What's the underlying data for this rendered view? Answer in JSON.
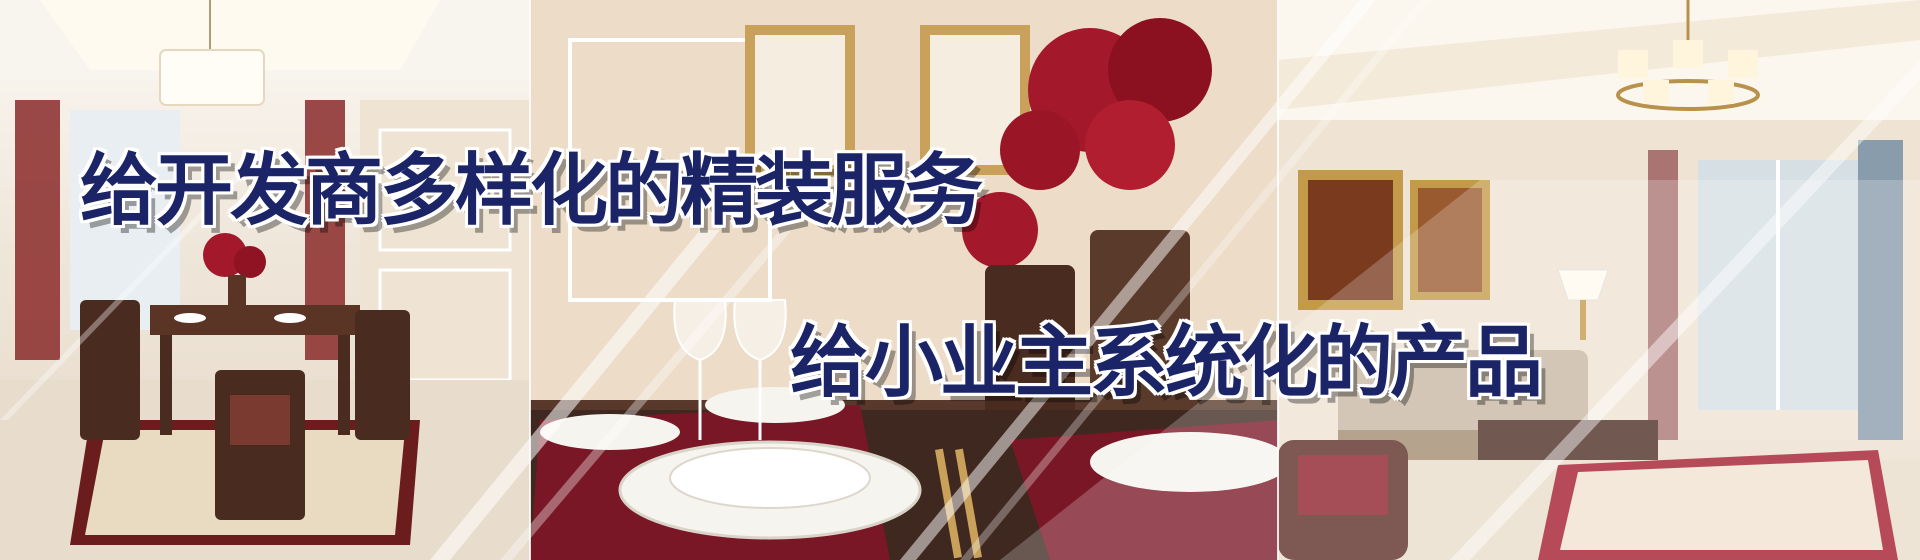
{
  "banner": {
    "headline_primary": "给开发商多样化的精装服务",
    "headline_secondary": "给小业主系统化的产品"
  },
  "colors": {
    "headline_text": "#1a2466",
    "headline_outline": "#ffffff",
    "accent_red": "#a3182a",
    "wood": "#4a2d22",
    "wall_cream": "#efe4d6"
  },
  "photos": [
    {
      "icon": "dining-room-photo"
    },
    {
      "icon": "table-setting-photo"
    },
    {
      "icon": "living-room-photo"
    }
  ]
}
